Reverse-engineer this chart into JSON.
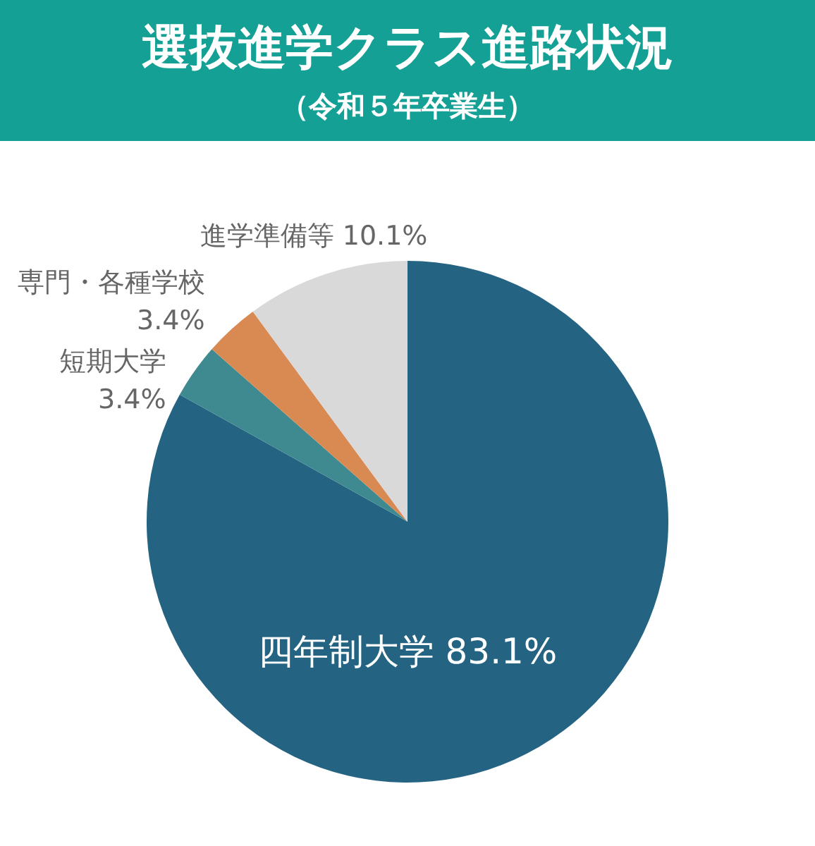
{
  "chart_data": {
    "type": "pie",
    "title": "選抜進学クラス進路状況",
    "subtitle": "（令和５年卒業生）",
    "categories": [
      "四年制大学",
      "短期大学",
      "専門・各種学校",
      "進学準備等"
    ],
    "values": [
      83.1,
      3.4,
      3.4,
      10.1
    ],
    "colors": [
      "#246482",
      "#3e8a90",
      "#d98a52",
      "#d9d9d9"
    ],
    "value_labels": [
      "83.1%",
      "3.4%",
      "3.4%",
      "10.1%"
    ]
  }
}
